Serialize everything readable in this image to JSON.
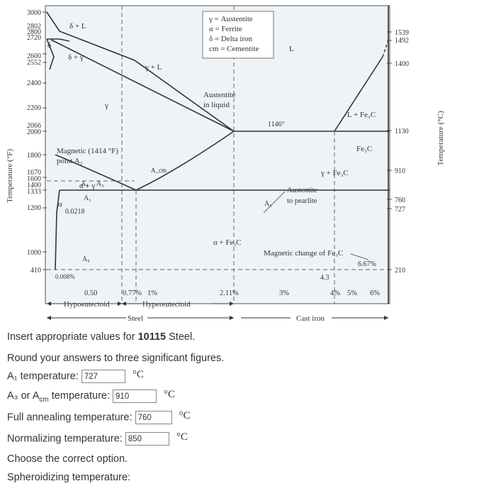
{
  "diagram": {
    "left_axis_label": "Temperature (°F)",
    "right_axis_label": "Temperature (°C)",
    "f_ticks": [
      "3000",
      "2802",
      "2800",
      "2720",
      "2600",
      "2552",
      "2400",
      "2200",
      "2066",
      "2000",
      "1800",
      "1670",
      "1600",
      "1400",
      "1333",
      "1200",
      "1000",
      "410"
    ],
    "c_ticks": [
      "1539",
      "1492",
      "1400",
      "1130",
      "910",
      "760",
      "727",
      "210"
    ],
    "bottom_percents": [
      "0.50",
      "0.77%",
      "1%",
      "2.11%",
      "3%",
      "4%",
      "5%",
      "6%"
    ],
    "percent_6_67": "6.67%",
    "percent_4_3": "4.3",
    "legend": [
      "γ = Austentite",
      "α = Ferrite",
      "δ = Delta iron",
      "cm = Cementite"
    ],
    "phase_labels": {
      "delta_L": "δ + L",
      "delta": "δ",
      "delta_gamma": "δ + γ",
      "gamma_L": "γ + L",
      "L": "L",
      "gamma": "γ",
      "L_Fe3C": "L + Fe₃C",
      "Fe3C": "Fe₃C",
      "gamma_Fe3C": "γ + Fe₃C",
      "alpha_gamma": "α + γ",
      "alpha": "α",
      "alpha_Fe3C": "α + Fe₃C",
      "acm": "A_cm",
      "a2": "A₂",
      "a3": "A₃",
      "a1": "A₁",
      "a1_right": "A₁",
      "a0": "A₀",
      "eutectic_temp": "1146°",
      "austenite_liquid_1": "Austentite",
      "austenite_liquid_2": "in liquid",
      "magnetic_1": "Magnetic (1414 °F)",
      "magnetic_2": "point A₂",
      "austenite_pearlite_1": "Austentite",
      "austenite_pearlite_2": "to pearlite",
      "magnetic_change": "Magnetic change of Fe₃C",
      "solubility_0218": "0.0218",
      "solubility_0008": "0.008%"
    },
    "ranges": {
      "hypoeutectoid": "Hypoeutectoid",
      "hypereutectoid": "Hypereutectoid",
      "steel": "Steel",
      "cast_iron": "Cast iron"
    }
  },
  "form": {
    "intro_prefix": "Insert appropriate values for ",
    "steel_grade": "10115",
    "intro_suffix": " Steel.",
    "round_note": "Round your answers to three significant figures.",
    "a1_label": "A₁ temperature:",
    "a1_value": "727",
    "a3_label_pre": "A₃ or A",
    "a3_label_sub": "cm",
    "a3_label_post": " temperature:",
    "a3_value": "910",
    "full_anneal_label": "Full annealing temperature:",
    "full_anneal_value": "760",
    "normalizing_label": "Normalizing temperature:",
    "normalizing_value": "850",
    "choose_label": "Choose the correct option.",
    "spheroidizing_label": "Spheroidizing temperature:",
    "unit": "°C"
  }
}
